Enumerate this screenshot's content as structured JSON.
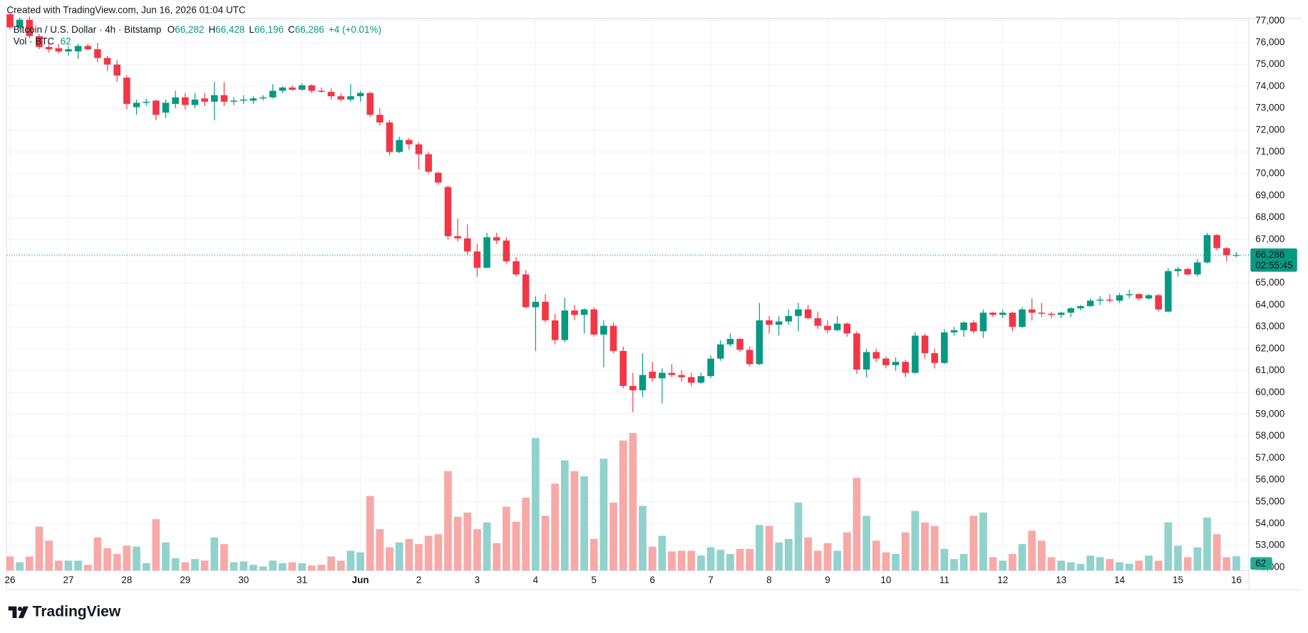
{
  "header": "Created with TradingView.com, Jun 16, 2026 01:04 UTC",
  "chart_data": {
    "type": "candlestick",
    "title": "Bitcoin / U.S. Dollar · 4h · Bitstamp",
    "legend": {
      "o_key": "O",
      "o": "66,282",
      "h_key": "H",
      "h": "66,428",
      "l_key": "L",
      "l": "66,196",
      "c_key": "C",
      "c": "66,286",
      "change": "+4 (+0.01%)"
    },
    "volume_title": "Vol · BTC",
    "volume_last": "62",
    "x": [
      26,
      26.1667,
      26.3333,
      26.5,
      26.6667,
      26.8333,
      27,
      27.1667,
      27.3333,
      27.5,
      27.6667,
      27.8333,
      28,
      28.1667,
      28.3333,
      28.5,
      28.6667,
      28.8333,
      29,
      29.1667,
      29.3333,
      29.5,
      29.6667,
      29.8333,
      30,
      30.1667,
      30.3333,
      30.5,
      30.6667,
      30.8333,
      31,
      31.1667,
      31.3333,
      31.5,
      31.6667,
      31.8333,
      32,
      32.1667,
      32.3333,
      32.5,
      32.6667,
      32.8333,
      33,
      33.1667,
      33.3333,
      33.5,
      33.6667,
      33.8333,
      34,
      34.1667,
      34.3333,
      34.5,
      34.6667,
      34.8333,
      35,
      35.1667,
      35.3333,
      35.5,
      35.6667,
      35.8333,
      36,
      36.1667,
      36.3333,
      36.5,
      36.6667,
      36.8333,
      37,
      37.1667,
      37.3333,
      37.5,
      37.6667,
      37.8333,
      38,
      38.1667,
      38.3333,
      38.5,
      38.6667,
      38.8333,
      39,
      39.1667,
      39.3333,
      39.5,
      39.6667,
      39.8333,
      40,
      40.1667,
      40.3333,
      40.5,
      40.6667,
      40.8333,
      41,
      41.1667,
      41.3333,
      41.5,
      41.6667,
      41.8333,
      42,
      42.1667,
      42.3333,
      42.5,
      42.6667,
      42.8333,
      43,
      43.1667,
      43.3333,
      43.5,
      43.6667,
      43.8333,
      44,
      44.1667,
      44.3333,
      44.5,
      44.6667,
      44.8333,
      45,
      45.1667,
      45.3333,
      45.5,
      45.6667,
      45.8333,
      46,
      46.1667,
      46.3333,
      46.5,
      46.6667,
      46.8333,
      47
    ],
    "open": [
      77300,
      76700,
      77050,
      76300,
      75800,
      75750,
      75600,
      75600,
      75850,
      75700,
      75300,
      75000,
      74400,
      73050,
      73250,
      73350,
      72800,
      73200,
      73500,
      73150,
      73450,
      73300,
      73600,
      73300,
      73350,
      73350,
      73450,
      73500,
      73800,
      73950,
      73850,
      74050,
      73800,
      73750,
      73550,
      73400,
      73550,
      73700,
      72700,
      72350,
      71000,
      71550,
      71350,
      70900,
      70050,
      69400,
      67150,
      67050,
      66450,
      65700,
      67100,
      66950,
      66000,
      65400,
      63900,
      64150,
      63300,
      62400,
      63750,
      63550,
      63800,
      62650,
      63050,
      61900,
      60300,
      60100,
      60950,
      60650,
      60900,
      60800,
      60700,
      60450,
      60750,
      61550,
      62200,
      62450,
      61950,
      61300,
      63300,
      63100,
      63250,
      63500,
      63800,
      63400,
      63050,
      62850,
      63150,
      62700,
      61050,
      61850,
      61550,
      61250,
      61400,
      60900,
      62600,
      61800,
      61350,
      62750,
      62850,
      63200,
      62800,
      63650,
      63550,
      63650,
      63000,
      63800,
      63650,
      63600,
      63550,
      63650,
      63850,
      63950,
      64200,
      64250,
      64200,
      64450,
      64500,
      64300,
      64450,
      63700,
      65550,
      65650,
      65400,
      65950,
      67200,
      66600,
      66282
    ],
    "high": [
      77400,
      77150,
      77200,
      76400,
      76000,
      75950,
      75850,
      75950,
      75950,
      76000,
      75400,
      75200,
      74500,
      73400,
      73450,
      73400,
      73400,
      73800,
      73700,
      73700,
      73700,
      74200,
      74200,
      73500,
      73600,
      73550,
      73600,
      74100,
      74000,
      74050,
      74150,
      74100,
      73950,
      73900,
      73700,
      74100,
      73800,
      73750,
      73000,
      72450,
      71700,
      71650,
      71450,
      71000,
      70100,
      69450,
      67950,
      67700,
      66800,
      67300,
      67300,
      67100,
      66200,
      65600,
      64400,
      64500,
      63600,
      64350,
      64000,
      63850,
      63900,
      63300,
      63200,
      62100,
      60900,
      61800,
      61400,
      61100,
      61300,
      61000,
      60900,
      60900,
      61700,
      62400,
      62700,
      62500,
      62100,
      64100,
      63500,
      63500,
      63800,
      64100,
      64000,
      63700,
      63300,
      63500,
      63200,
      62800,
      62000,
      62000,
      61650,
      61600,
      61500,
      62750,
      62700,
      62000,
      62900,
      63000,
      63250,
      63300,
      63800,
      63700,
      63800,
      63700,
      63900,
      64300,
      64100,
      63700,
      63700,
      63900,
      64000,
      64300,
      64400,
      64500,
      64550,
      64700,
      64550,
      64500,
      64500,
      65700,
      65750,
      65700,
      66100,
      67300,
      67250,
      66650,
      66428
    ],
    "low": [
      76600,
      76600,
      76200,
      75700,
      75550,
      75500,
      75400,
      75250,
      75650,
      75100,
      74700,
      74200,
      72950,
      72700,
      73100,
      72450,
      72550,
      73000,
      72950,
      73000,
      73100,
      72450,
      73100,
      73150,
      73200,
      73200,
      73350,
      73450,
      73700,
      73800,
      73800,
      73700,
      73700,
      73400,
      73300,
      73300,
      73300,
      72600,
      72200,
      70850,
      70950,
      71100,
      70200,
      70000,
      69500,
      67000,
      66900,
      66300,
      65300,
      65700,
      66800,
      65900,
      65300,
      63850,
      61900,
      63200,
      62200,
      62300,
      63300,
      62700,
      62550,
      61150,
      61800,
      60200,
      59100,
      59800,
      60500,
      59500,
      60700,
      60500,
      60300,
      60400,
      60650,
      61450,
      62100,
      61850,
      61200,
      61250,
      62700,
      62600,
      63100,
      62800,
      63350,
      62900,
      62700,
      62800,
      62550,
      60850,
      60700,
      61400,
      61100,
      61000,
      60700,
      60850,
      61550,
      61100,
      61300,
      62600,
      62550,
      62700,
      62500,
      63450,
      63400,
      62800,
      62950,
      63300,
      63450,
      63400,
      63400,
      63450,
      63750,
      63900,
      64000,
      64100,
      64100,
      64300,
      64200,
      64250,
      63700,
      63650,
      65300,
      65350,
      65300,
      65900,
      66500,
      66000,
      66196
    ],
    "close": [
      76700,
      77050,
      76300,
      75800,
      75700,
      75600,
      75700,
      75850,
      75700,
      75300,
      75000,
      74500,
      73200,
      73250,
      73300,
      72700,
      73250,
      73500,
      73150,
      73400,
      73300,
      73600,
      73300,
      73350,
      73400,
      73450,
      73500,
      73800,
      73950,
      73850,
      74050,
      73800,
      73750,
      73550,
      73400,
      73550,
      73700,
      72700,
      72350,
      71000,
      71550,
      71350,
      70900,
      70100,
      69600,
      67150,
      67050,
      66450,
      65700,
      67100,
      66950,
      66000,
      65400,
      63900,
      64150,
      63300,
      62400,
      63750,
      63550,
      63800,
      62650,
      63050,
      61900,
      60300,
      60100,
      60800,
      60650,
      60900,
      60800,
      60700,
      60450,
      60750,
      61550,
      62200,
      62450,
      61950,
      61300,
      63300,
      63100,
      63250,
      63500,
      63800,
      63400,
      63050,
      62850,
      63150,
      62700,
      61050,
      61850,
      61550,
      61250,
      61400,
      60900,
      62600,
      61800,
      61350,
      62750,
      62850,
      63200,
      62800,
      63650,
      63550,
      63650,
      63000,
      63800,
      63650,
      63600,
      63550,
      63650,
      63850,
      63950,
      64200,
      64250,
      64200,
      64450,
      64500,
      64300,
      64450,
      63800,
      65550,
      65650,
      65400,
      65950,
      67200,
      66600,
      66282,
      66286
    ],
    "volume": [
      61,
      36,
      61,
      191,
      130,
      43,
      43,
      43,
      25,
      144,
      97,
      72,
      108,
      104,
      32,
      223,
      122,
      54,
      36,
      50,
      43,
      144,
      115,
      36,
      40,
      25,
      18,
      43,
      32,
      36,
      32,
      22,
      25,
      61,
      43,
      86,
      79,
      324,
      180,
      101,
      122,
      137,
      115,
      151,
      158,
      432,
      234,
      252,
      180,
      209,
      119,
      277,
      212,
      317,
      576,
      238,
      378,
      479,
      432,
      410,
      137,
      486,
      295,
      565,
      598,
      281,
      104,
      151,
      83,
      86,
      86,
      65,
      101,
      90,
      72,
      94,
      94,
      198,
      194,
      122,
      137,
      295,
      144,
      86,
      119,
      86,
      166,
      403,
      238,
      130,
      79,
      72,
      166,
      259,
      209,
      194,
      94,
      50,
      72,
      238,
      252,
      58,
      43,
      72,
      115,
      173,
      130,
      58,
      43,
      36,
      29,
      65,
      58,
      50,
      36,
      29,
      43,
      65,
      43,
      209,
      108,
      58,
      101,
      230,
      158,
      58,
      62
    ],
    "up_color": "#089981",
    "down_color": "#f23645",
    "volume_up_color": "#92d2cc",
    "volume_down_color": "#f7a9a7",
    "xlim": [
      25.943,
      47.213
    ],
    "xticks": [
      26,
      27,
      28,
      29,
      30,
      31,
      {
        "value": 32,
        "label": "Jun"
      },
      {
        "value": 33,
        "label": "2"
      },
      {
        "value": 34,
        "label": "3"
      },
      {
        "value": 35,
        "label": "4"
      },
      {
        "value": 36,
        "label": "5"
      },
      {
        "value": 37,
        "label": "6"
      },
      {
        "value": 38,
        "label": "7"
      },
      {
        "value": 39,
        "label": "8"
      },
      {
        "value": 40,
        "label": "9"
      },
      {
        "value": 41,
        "label": "10"
      },
      {
        "value": 42,
        "label": "11"
      },
      {
        "value": 43,
        "label": "12"
      },
      {
        "value": 44,
        "label": "13"
      },
      {
        "value": 45,
        "label": "14"
      },
      {
        "value": 46,
        "label": "15"
      },
      {
        "value": 47,
        "label": "16"
      }
    ],
    "ylim": [
      51857,
      77114
    ],
    "yticks": [
      {
        "value": 52000,
        "label": "52,000"
      },
      {
        "value": 53000,
        "label": "53,000"
      },
      {
        "value": 54000,
        "label": "54,000"
      },
      {
        "value": 55000,
        "label": "55,000"
      },
      {
        "value": 56000,
        "label": "56,000"
      },
      {
        "value": 57000,
        "label": "57,000"
      },
      {
        "value": 58000,
        "label": "58,000"
      },
      {
        "value": 59000,
        "label": "59,000"
      },
      {
        "value": 60000,
        "label": "60,000"
      },
      {
        "value": 61000,
        "label": "61,000"
      },
      {
        "value": 62000,
        "label": "62,000"
      },
      {
        "value": 63000,
        "label": "63,000"
      },
      {
        "value": 64000,
        "label": "64,000"
      },
      {
        "value": 65000,
        "label": "65,000"
      },
      {
        "value": 66000,
        "label": "66,000"
      },
      {
        "value": 67000,
        "label": "67,000"
      },
      {
        "value": 68000,
        "label": "68,000"
      },
      {
        "value": 69000,
        "label": "69,000"
      },
      {
        "value": 70000,
        "label": "70,000"
      },
      {
        "value": 71000,
        "label": "71,000"
      },
      {
        "value": 72000,
        "label": "72,000"
      },
      {
        "value": 73000,
        "label": "73,000"
      },
      {
        "value": 74000,
        "label": "74,000"
      },
      {
        "value": 75000,
        "label": "75,000"
      },
      {
        "value": 76000,
        "label": "76,000"
      },
      {
        "value": 77000,
        "label": "77,000"
      }
    ],
    "volume_ylim": [
      0,
      2400
    ],
    "grid": true,
    "last_price": {
      "value": 66286,
      "label": "66,286",
      "countdown": "02:55:45"
    },
    "volume_tag": "62"
  },
  "footer": {
    "logo": "TradingView"
  }
}
